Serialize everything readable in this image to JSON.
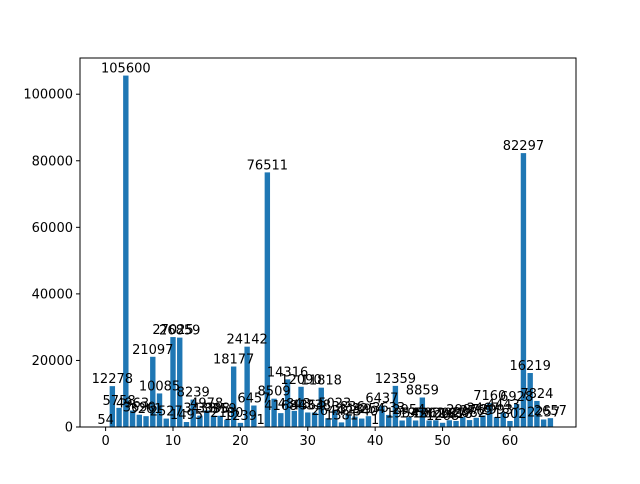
{
  "chart_data": {
    "type": "bar",
    "title": "",
    "xlabel": "",
    "ylabel": "",
    "xlim": [
      -3.8,
      69.8
    ],
    "ylim": [
      0,
      110880
    ],
    "xticks": [
      0,
      10,
      20,
      30,
      40,
      50,
      60
    ],
    "yticks": [
      0,
      20000,
      40000,
      60000,
      80000,
      100000
    ],
    "grid": false,
    "bar_color": "#1f77b4",
    "x": [
      0,
      1,
      2,
      3,
      4,
      5,
      6,
      7,
      8,
      9,
      10,
      11,
      12,
      13,
      14,
      15,
      16,
      17,
      18,
      19,
      20,
      21,
      22,
      23,
      24,
      25,
      26,
      27,
      28,
      29,
      30,
      31,
      32,
      33,
      34,
      35,
      36,
      37,
      38,
      39,
      40,
      41,
      42,
      43,
      44,
      45,
      46,
      47,
      48,
      49,
      50,
      51,
      52,
      53,
      54,
      55,
      56,
      57,
      58,
      59,
      60,
      61,
      62,
      63,
      64,
      65,
      66
    ],
    "values": [
      54,
      12278,
      5758,
      105600,
      4963,
      3690,
      3261,
      21097,
      10085,
      2527,
      27025,
      26859,
      1495,
      8239,
      3433,
      4978,
      3398,
      3359,
      2180,
      18177,
      1239,
      24142,
      6457,
      1,
      76511,
      8509,
      4168,
      14316,
      4843,
      12090,
      4364,
      4338,
      11818,
      2644,
      5023,
      1381,
      3836,
      3139,
      2540,
      3254,
      1,
      6437,
      3633,
      12359,
      1954,
      2954,
      1958,
      8859,
      1962,
      2019,
      1268,
      2027,
      1818,
      2987,
      2082,
      2765,
      3467,
      7160,
      2993,
      4443,
      1802,
      6928,
      82297,
      16219,
      7824,
      2257,
      2657
    ],
    "labels": [
      "54",
      "12278",
      "5758",
      "105600",
      "4963",
      "3690",
      "3261",
      "21097",
      "10085",
      "2527",
      "27025",
      "26859",
      "1495",
      "8239",
      "3433",
      "4978",
      "3398",
      "3359",
      "2180",
      "18177",
      "1239",
      "24142",
      "6457",
      "1",
      "76511",
      "8509",
      "4168",
      "14316",
      "4843",
      "12090",
      "4364",
      "4338",
      "11818",
      "2644",
      "5023",
      "1381",
      "3836",
      "3139",
      "2540",
      "3254",
      "1",
      "6437",
      "3633",
      "12359",
      "1954",
      "2954",
      "1958",
      "8859",
      "1962",
      "2019",
      "1268",
      "2027",
      "1818",
      "2987",
      "2082",
      "2765",
      "3467",
      "7160",
      "2993",
      "4443",
      "1802",
      "6928",
      "82297",
      "16219",
      "7824",
      "2257",
      "2657"
    ]
  }
}
